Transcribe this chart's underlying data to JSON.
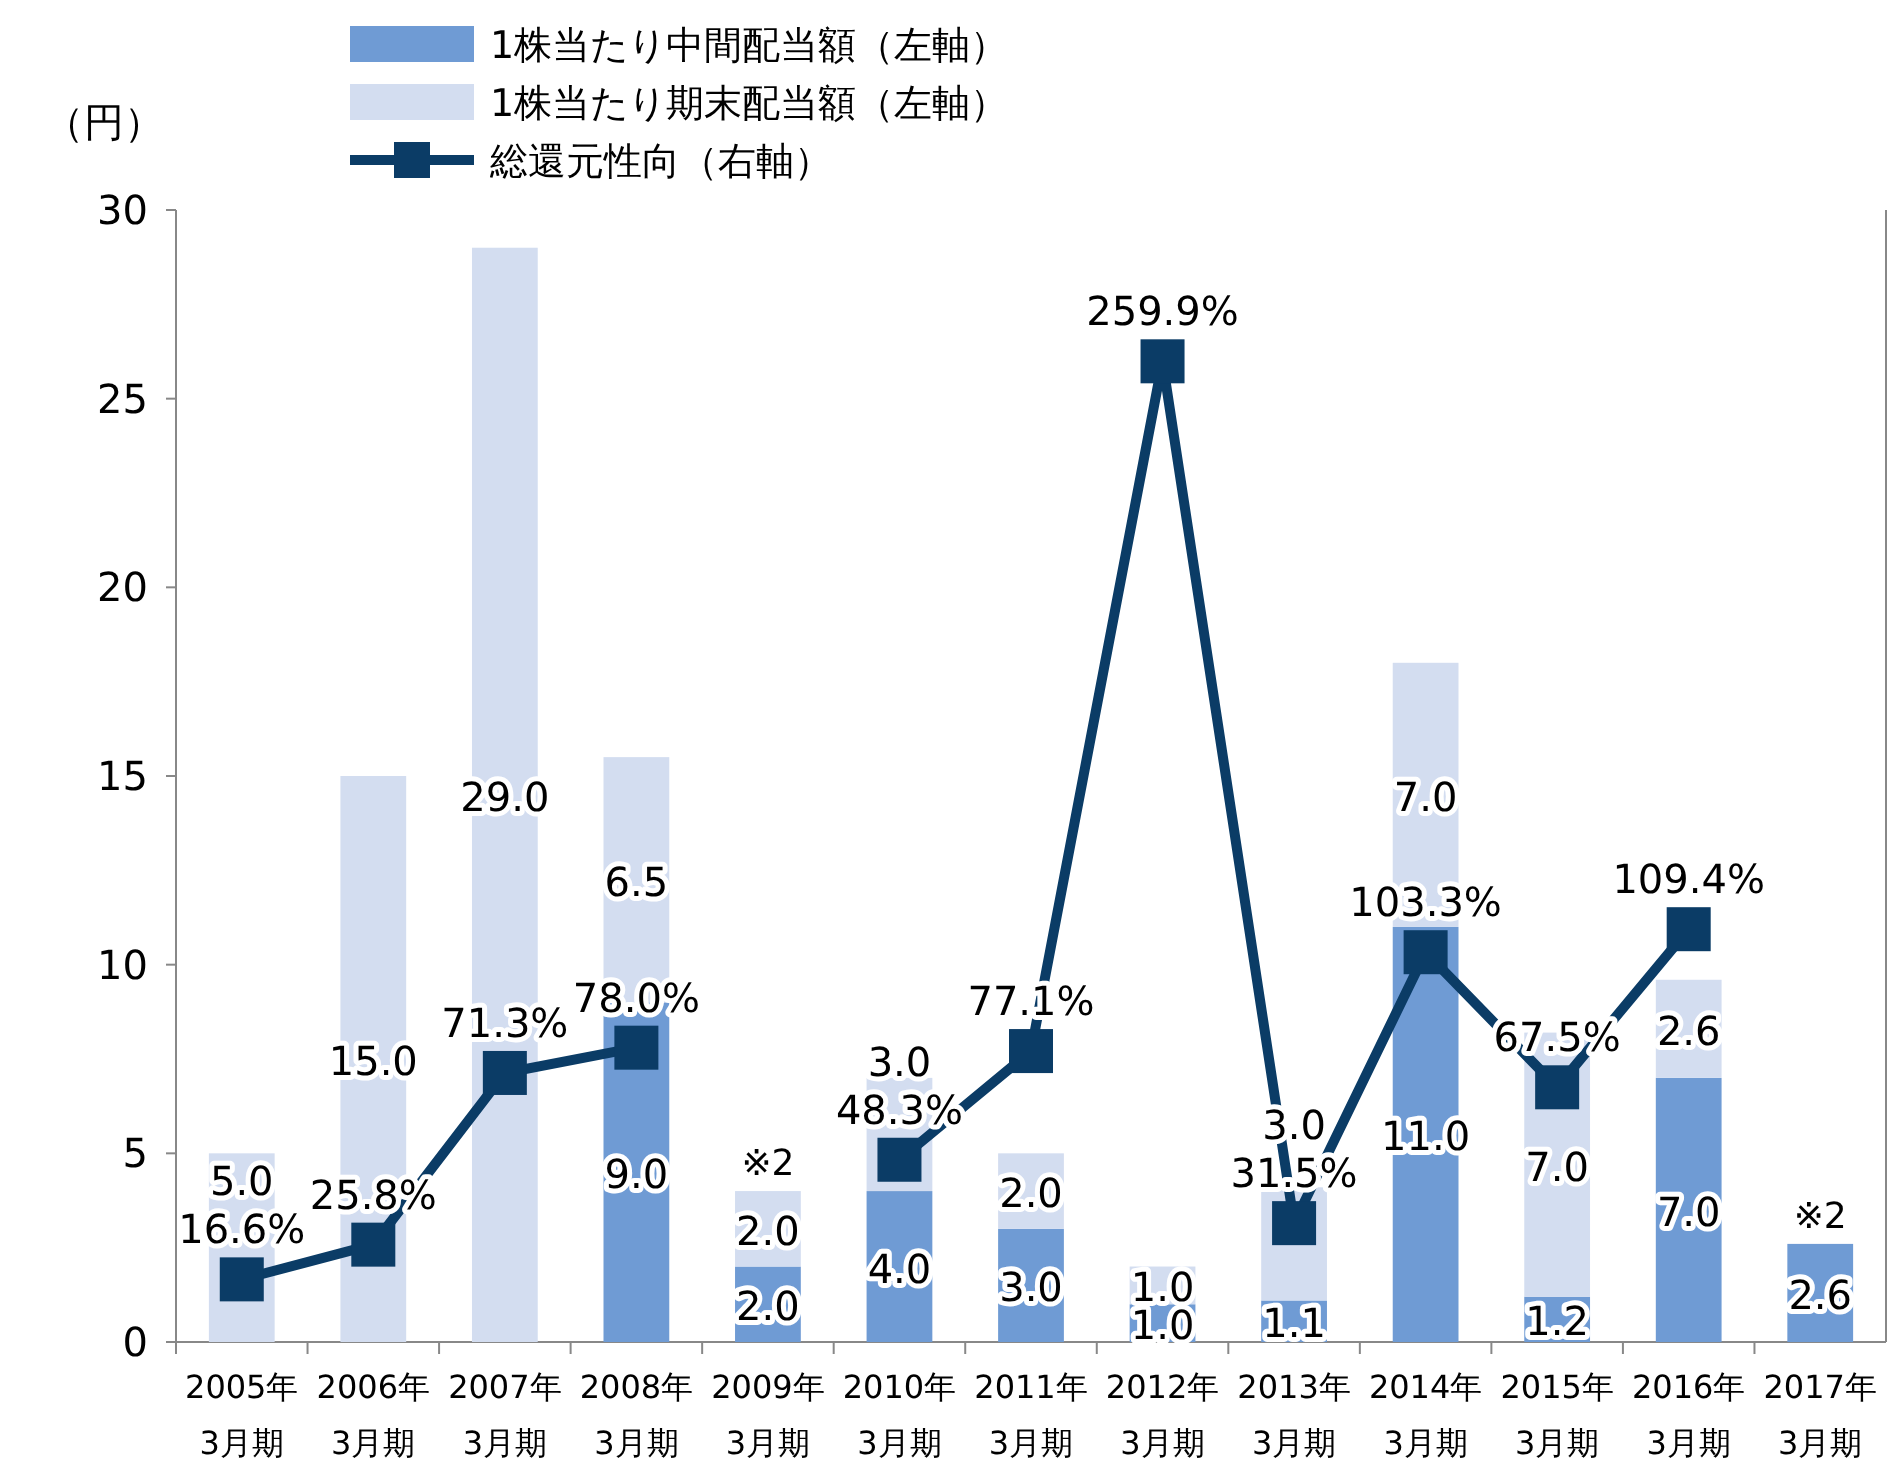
{
  "chart_data": {
    "type": "bar",
    "stacked": true,
    "ylabel": "（円）",
    "categories": [
      "2005年\n3月期",
      "2006年\n3月期",
      "2007年\n3月期",
      "2008年\n3月期",
      "2009年\n3月期",
      "2010年\n3月期",
      "2011年\n3月期",
      "2012年\n3月期",
      "2013年\n3月期",
      "2014年\n3月期",
      "2015年\n3月期",
      "2016年\n3月期",
      "2017年\n3月期"
    ],
    "series": [
      {
        "name": "1株当たり中間配当額（左軸）",
        "color": "#6f9bd4",
        "values": [
          null,
          null,
          null,
          9.0,
          2.0,
          4.0,
          3.0,
          1.0,
          1.1,
          11.0,
          1.2,
          7.0,
          2.6
        ],
        "value_labels": [
          null,
          null,
          null,
          "9.0",
          "2.0",
          "4.0",
          "3.0",
          "1.0",
          "1.1",
          "11.0",
          "1.2",
          "7.0",
          "2.6"
        ]
      },
      {
        "name": "1株当たり期末配当額（左軸）",
        "color": "#d3ddf0",
        "values": [
          5.0,
          15.0,
          29.0,
          6.5,
          2.0,
          3.0,
          2.0,
          1.0,
          3.0,
          7.0,
          7.0,
          2.6,
          null
        ],
        "value_labels": [
          "5.0",
          "15.0",
          "29.0",
          "6.5",
          "2.0",
          "3.0",
          "2.0",
          "1.0",
          "3.0",
          "7.0",
          "7.0",
          "2.6",
          null
        ]
      },
      {
        "name": "総還元性向（右軸）",
        "type": "line",
        "axis": "y2",
        "color": "#0b3c66",
        "marker": "square",
        "values": [
          16.6,
          25.8,
          71.3,
          78.0,
          null,
          48.3,
          77.1,
          259.9,
          31.5,
          103.3,
          67.5,
          109.4,
          null
        ],
        "value_labels": [
          "16.6%",
          "25.8%",
          "71.3%",
          "78.0%",
          null,
          "48.3%",
          "77.1%",
          "259.9%",
          "31.5%",
          "103.3%",
          "67.5%",
          "109.4%",
          null
        ]
      }
    ],
    "ylim": [
      0,
      30
    ],
    "yticks": [
      0,
      5,
      10,
      15,
      20,
      25,
      30
    ],
    "y2lim": [
      0,
      300
    ],
    "annotations": [
      {
        "text": "※2",
        "x": "2009年\n3月期",
        "y": 4.0
      },
      {
        "text": "※2",
        "x": "2017年\n3月期",
        "y": 2.6
      }
    ],
    "legend": "top",
    "grid": false
  }
}
